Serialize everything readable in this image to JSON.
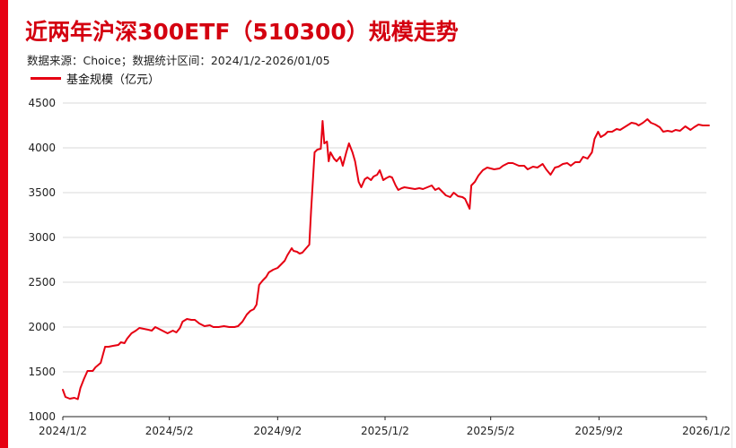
{
  "page": {
    "title": "近两年沪深300ETF（510300）规模走势",
    "subtitle": "数据来源：Choice；数据统计区间：2024/1/2-2026/01/05",
    "accent_color": "#e60012",
    "title_color": "#d40010"
  },
  "chart_data": {
    "type": "line",
    "ylim": [
      1000,
      4500
    ],
    "yticks": [
      1000,
      1500,
      2000,
      2500,
      3000,
      3500,
      4000,
      4500
    ],
    "xlim": [
      "2024-01-02",
      "2026-01-02"
    ],
    "xticks": [
      {
        "label": "2024/1/2",
        "date": "2024-01-02"
      },
      {
        "label": "2024/5/2",
        "date": "2024-05-02"
      },
      {
        "label": "2024/9/2",
        "date": "2024-09-02"
      },
      {
        "label": "2025/1/2",
        "date": "2025-01-02"
      },
      {
        "label": "2025/5/2",
        "date": "2025-05-02"
      },
      {
        "label": "2025/9/2",
        "date": "2025-09-02"
      },
      {
        "label": "2026/1/2",
        "date": "2026-01-02"
      }
    ],
    "grid": true,
    "legend": "top-left",
    "series": [
      {
        "name": "基金规模（亿元）",
        "color": "#e60012",
        "points": [
          [
            "2024-01-02",
            1300
          ],
          [
            "2024-01-05",
            1220
          ],
          [
            "2024-01-10",
            1200
          ],
          [
            "2024-01-15",
            1210
          ],
          [
            "2024-01-19",
            1195
          ],
          [
            "2024-01-22",
            1320
          ],
          [
            "2024-01-26",
            1420
          ],
          [
            "2024-01-30",
            1510
          ],
          [
            "2024-02-05",
            1510
          ],
          [
            "2024-02-08",
            1550
          ],
          [
            "2024-02-14",
            1600
          ],
          [
            "2024-02-19",
            1780
          ],
          [
            "2024-02-23",
            1780
          ],
          [
            "2024-02-28",
            1790
          ],
          [
            "2024-03-05",
            1800
          ],
          [
            "2024-03-08",
            1830
          ],
          [
            "2024-03-12",
            1820
          ],
          [
            "2024-03-15",
            1870
          ],
          [
            "2024-03-20",
            1930
          ],
          [
            "2024-03-25",
            1960
          ],
          [
            "2024-03-29",
            1990
          ],
          [
            "2024-04-03",
            1980
          ],
          [
            "2024-04-08",
            1970
          ],
          [
            "2024-04-12",
            1960
          ],
          [
            "2024-04-16",
            2000
          ],
          [
            "2024-04-22",
            1970
          ],
          [
            "2024-04-26",
            1950
          ],
          [
            "2024-04-30",
            1930
          ],
          [
            "2024-05-06",
            1960
          ],
          [
            "2024-05-10",
            1940
          ],
          [
            "2024-05-14",
            1990
          ],
          [
            "2024-05-17",
            2060
          ],
          [
            "2024-05-22",
            2090
          ],
          [
            "2024-05-27",
            2080
          ],
          [
            "2024-05-31",
            2080
          ],
          [
            "2024-06-05",
            2040
          ],
          [
            "2024-06-11",
            2010
          ],
          [
            "2024-06-17",
            2020
          ],
          [
            "2024-06-21",
            2000
          ],
          [
            "2024-06-27",
            2000
          ],
          [
            "2024-07-03",
            2010
          ],
          [
            "2024-07-09",
            2000
          ],
          [
            "2024-07-15",
            2000
          ],
          [
            "2024-07-19",
            2010
          ],
          [
            "2024-07-24",
            2060
          ],
          [
            "2024-07-29",
            2140
          ],
          [
            "2024-08-02",
            2180
          ],
          [
            "2024-08-06",
            2200
          ],
          [
            "2024-08-09",
            2250
          ],
          [
            "2024-08-12",
            2470
          ],
          [
            "2024-08-16",
            2520
          ],
          [
            "2024-08-20",
            2560
          ],
          [
            "2024-08-23",
            2610
          ],
          [
            "2024-08-28",
            2640
          ],
          [
            "2024-09-02",
            2660
          ],
          [
            "2024-09-06",
            2700
          ],
          [
            "2024-09-10",
            2740
          ],
          [
            "2024-09-13",
            2800
          ],
          [
            "2024-09-18",
            2880
          ],
          [
            "2024-09-20",
            2850
          ],
          [
            "2024-09-24",
            2840
          ],
          [
            "2024-09-27",
            2820
          ],
          [
            "2024-09-30",
            2830
          ],
          [
            "2024-10-08",
            2920
          ],
          [
            "2024-10-10",
            3300
          ],
          [
            "2024-10-14",
            3950
          ],
          [
            "2024-10-17",
            3980
          ],
          [
            "2024-10-21",
            3990
          ],
          [
            "2024-10-23",
            4300
          ],
          [
            "2024-10-25",
            4050
          ],
          [
            "2024-10-28",
            4070
          ],
          [
            "2024-10-30",
            3850
          ],
          [
            "2024-11-01",
            3950
          ],
          [
            "2024-11-05",
            3880
          ],
          [
            "2024-11-08",
            3850
          ],
          [
            "2024-11-12",
            3900
          ],
          [
            "2024-11-15",
            3800
          ],
          [
            "2024-11-19",
            3950
          ],
          [
            "2024-11-22",
            4050
          ],
          [
            "2024-11-26",
            3950
          ],
          [
            "2024-11-29",
            3850
          ],
          [
            "2024-12-03",
            3620
          ],
          [
            "2024-12-06",
            3560
          ],
          [
            "2024-12-10",
            3650
          ],
          [
            "2024-12-13",
            3670
          ],
          [
            "2024-12-17",
            3640
          ],
          [
            "2024-12-20",
            3680
          ],
          [
            "2024-12-24",
            3700
          ],
          [
            "2024-12-27",
            3750
          ],
          [
            "2024-12-31",
            3640
          ],
          [
            "2025-01-03",
            3660
          ],
          [
            "2025-01-07",
            3680
          ],
          [
            "2025-01-10",
            3670
          ],
          [
            "2025-01-14",
            3580
          ],
          [
            "2025-01-17",
            3530
          ],
          [
            "2025-01-21",
            3550
          ],
          [
            "2025-01-24",
            3560
          ],
          [
            "2025-02-05",
            3540
          ],
          [
            "2025-02-10",
            3550
          ],
          [
            "2025-02-14",
            3540
          ],
          [
            "2025-02-19",
            3560
          ],
          [
            "2025-02-24",
            3580
          ],
          [
            "2025-02-28",
            3530
          ],
          [
            "2025-03-04",
            3550
          ],
          [
            "2025-03-07",
            3520
          ],
          [
            "2025-03-12",
            3470
          ],
          [
            "2025-03-17",
            3450
          ],
          [
            "2025-03-21",
            3500
          ],
          [
            "2025-03-26",
            3460
          ],
          [
            "2025-03-31",
            3450
          ],
          [
            "2025-04-03",
            3430
          ],
          [
            "2025-04-08",
            3320
          ],
          [
            "2025-04-10",
            3580
          ],
          [
            "2025-04-14",
            3620
          ],
          [
            "2025-04-18",
            3690
          ],
          [
            "2025-04-23",
            3750
          ],
          [
            "2025-04-28",
            3780
          ],
          [
            "2025-05-06",
            3760
          ],
          [
            "2025-05-12",
            3770
          ],
          [
            "2025-05-16",
            3800
          ],
          [
            "2025-05-22",
            3830
          ],
          [
            "2025-05-27",
            3830
          ],
          [
            "2025-06-03",
            3800
          ],
          [
            "2025-06-09",
            3800
          ],
          [
            "2025-06-13",
            3760
          ],
          [
            "2025-06-19",
            3790
          ],
          [
            "2025-06-24",
            3780
          ],
          [
            "2025-06-30",
            3820
          ],
          [
            "2025-07-04",
            3760
          ],
          [
            "2025-07-09",
            3700
          ],
          [
            "2025-07-14",
            3780
          ],
          [
            "2025-07-18",
            3790
          ],
          [
            "2025-07-23",
            3820
          ],
          [
            "2025-07-28",
            3830
          ],
          [
            "2025-08-01",
            3800
          ],
          [
            "2025-08-06",
            3840
          ],
          [
            "2025-08-11",
            3840
          ],
          [
            "2025-08-15",
            3900
          ],
          [
            "2025-08-20",
            3880
          ],
          [
            "2025-08-25",
            3950
          ],
          [
            "2025-08-28",
            4100
          ],
          [
            "2025-09-01",
            4180
          ],
          [
            "2025-09-04",
            4120
          ],
          [
            "2025-09-09",
            4150
          ],
          [
            "2025-09-12",
            4180
          ],
          [
            "2025-09-17",
            4180
          ],
          [
            "2025-09-22",
            4210
          ],
          [
            "2025-09-26",
            4200
          ],
          [
            "2025-10-09",
            4280
          ],
          [
            "2025-10-14",
            4270
          ],
          [
            "2025-10-17",
            4250
          ],
          [
            "2025-10-22",
            4280
          ],
          [
            "2025-10-27",
            4320
          ],
          [
            "2025-10-31",
            4280
          ],
          [
            "2025-11-05",
            4260
          ],
          [
            "2025-11-10",
            4230
          ],
          [
            "2025-11-14",
            4180
          ],
          [
            "2025-11-19",
            4190
          ],
          [
            "2025-11-24",
            4180
          ],
          [
            "2025-11-28",
            4200
          ],
          [
            "2025-12-03",
            4190
          ],
          [
            "2025-12-09",
            4240
          ],
          [
            "2025-12-15",
            4200
          ],
          [
            "2025-12-19",
            4230
          ],
          [
            "2025-12-24",
            4260
          ],
          [
            "2025-12-29",
            4250
          ],
          [
            "2026-01-02",
            4250
          ],
          [
            "2026-01-05",
            4250
          ]
        ]
      }
    ]
  }
}
